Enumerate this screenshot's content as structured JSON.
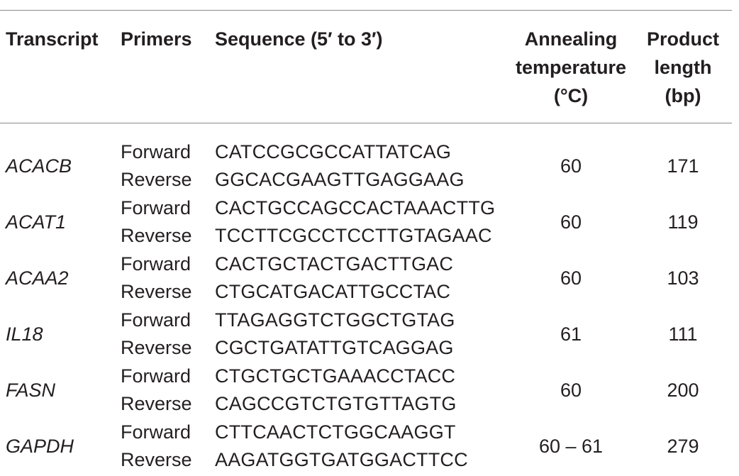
{
  "table": {
    "headers": {
      "transcript": "Transcript",
      "primers": "Primers",
      "sequence": "Sequence (5′ to 3′)",
      "annealing_line1": "Annealing",
      "annealing_line2": "temperature",
      "annealing_line3": "(°C)",
      "product_line1": "Product",
      "product_line2": "length",
      "product_line3": "(bp)"
    },
    "rows": [
      {
        "transcript": "ACACB",
        "primer_forward": "Forward",
        "primer_reverse": "Reverse",
        "seq_forward": "CATCCGCGCCATTATCAG",
        "seq_reverse": "GGCACGAAGTTGAGGAAG",
        "annealing": "60",
        "product_length": "171"
      },
      {
        "transcript": "ACAT1",
        "primer_forward": "Forward",
        "primer_reverse": "Reverse",
        "seq_forward": "CACTGCCAGCCACTAAACTTG",
        "seq_reverse": "TCCTTCGCCTCCTTGTAGAAC",
        "annealing": "60",
        "product_length": "119"
      },
      {
        "transcript": "ACAA2",
        "primer_forward": "Forward",
        "primer_reverse": "Reverse",
        "seq_forward": "CACTGCTACTGACTTGAC",
        "seq_reverse": "CTGCATGACATTGCCTAC",
        "annealing": "60",
        "product_length": "103"
      },
      {
        "transcript": "IL18",
        "primer_forward": "Forward",
        "primer_reverse": "Reverse",
        "seq_forward": "TTAGAGGTCTGGCTGTAG",
        "seq_reverse": "CGCTGATATTGTCAGGAG",
        "annealing": "61",
        "product_length": "111"
      },
      {
        "transcript": "FASN",
        "primer_forward": "Forward",
        "primer_reverse": "Reverse",
        "seq_forward": "CTGCTGCTGAAACCTACC",
        "seq_reverse": "CAGCCGTCTGTGTTAGTG",
        "annealing": "60",
        "product_length": "200"
      },
      {
        "transcript": "GAPDH",
        "primer_forward": "Forward",
        "primer_reverse": "Reverse",
        "seq_forward": "CTTCAACTCTGGCAAGGT",
        "seq_reverse": "AAGATGGTGATGGACTTCC",
        "annealing": "60 – 61",
        "product_length": "279"
      }
    ]
  }
}
